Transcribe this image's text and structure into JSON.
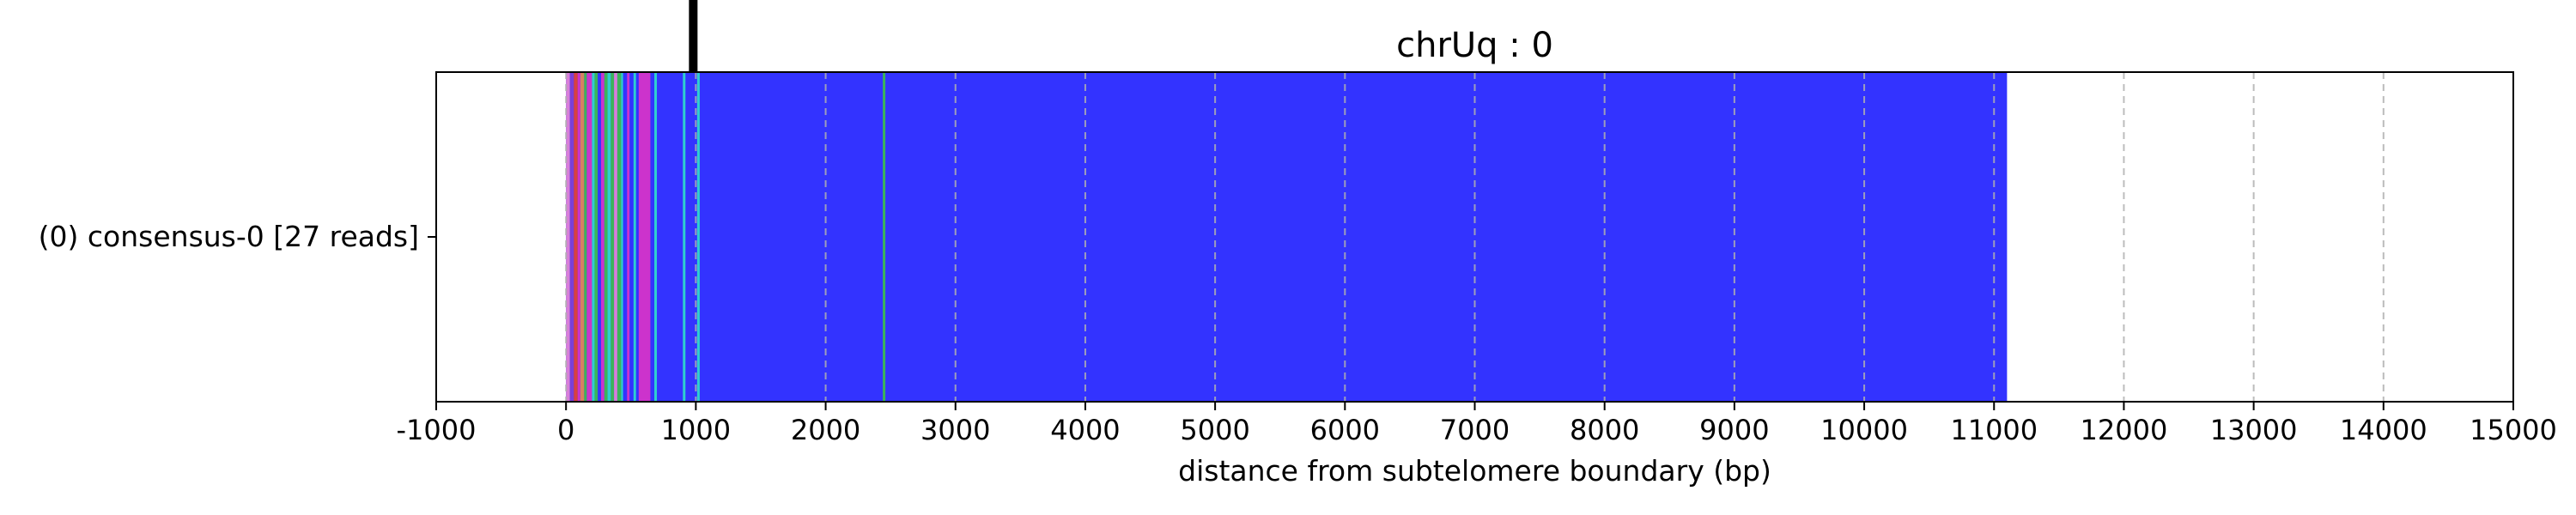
{
  "chart_data": {
    "type": "bar",
    "title": "chrUq : 0",
    "xlabel": "distance from subtelomere boundary (bp)",
    "ylabel": "",
    "xlim": [
      -1000,
      15000
    ],
    "xticks": [
      -1000,
      0,
      1000,
      2000,
      3000,
      4000,
      5000,
      6000,
      7000,
      8000,
      9000,
      10000,
      11000,
      12000,
      13000,
      14000,
      15000
    ],
    "grid": true,
    "categories": [
      "(0) consensus-0 [27 reads]"
    ],
    "marker_line": {
      "x": 980
    },
    "series": [
      {
        "background_color": "#3333ff",
        "start": 0,
        "end": 11100,
        "segments": [
          {
            "start": 0,
            "end": 30,
            "color": "#d87fd8"
          },
          {
            "start": 30,
            "end": 60,
            "color": "#7b3fd8"
          },
          {
            "start": 60,
            "end": 90,
            "color": "#d84040"
          },
          {
            "start": 90,
            "end": 110,
            "color": "#cc33cc"
          },
          {
            "start": 110,
            "end": 140,
            "color": "#d88060"
          },
          {
            "start": 140,
            "end": 160,
            "color": "#3bb35a"
          },
          {
            "start": 160,
            "end": 200,
            "color": "#cc33cc"
          },
          {
            "start": 200,
            "end": 220,
            "color": "#2ecfcf"
          },
          {
            "start": 220,
            "end": 245,
            "color": "#3bb35a"
          },
          {
            "start": 245,
            "end": 270,
            "color": "#3333ff"
          },
          {
            "start": 270,
            "end": 295,
            "color": "#cc33cc"
          },
          {
            "start": 295,
            "end": 320,
            "color": "#3bb35a"
          },
          {
            "start": 320,
            "end": 345,
            "color": "#2ecfcf"
          },
          {
            "start": 345,
            "end": 370,
            "color": "#3bb35a"
          },
          {
            "start": 370,
            "end": 395,
            "color": "#d87fd8"
          },
          {
            "start": 395,
            "end": 425,
            "color": "#3bb35a"
          },
          {
            "start": 425,
            "end": 440,
            "color": "#2ecfcf"
          },
          {
            "start": 440,
            "end": 470,
            "color": "#3333ff"
          },
          {
            "start": 470,
            "end": 490,
            "color": "#cc33cc"
          },
          {
            "start": 490,
            "end": 520,
            "color": "#3333ff"
          },
          {
            "start": 520,
            "end": 540,
            "color": "#2ecfcf"
          },
          {
            "start": 540,
            "end": 560,
            "color": "#3333ff"
          },
          {
            "start": 560,
            "end": 650,
            "color": "#cc33cc"
          },
          {
            "start": 650,
            "end": 680,
            "color": "#3333ff"
          },
          {
            "start": 680,
            "end": 700,
            "color": "#2ecfcf"
          },
          {
            "start": 900,
            "end": 920,
            "color": "#2ecfcf"
          },
          {
            "start": 1010,
            "end": 1030,
            "color": "#2ecfcf"
          },
          {
            "start": 2440,
            "end": 2460,
            "color": "#3bb35a"
          }
        ]
      }
    ]
  }
}
